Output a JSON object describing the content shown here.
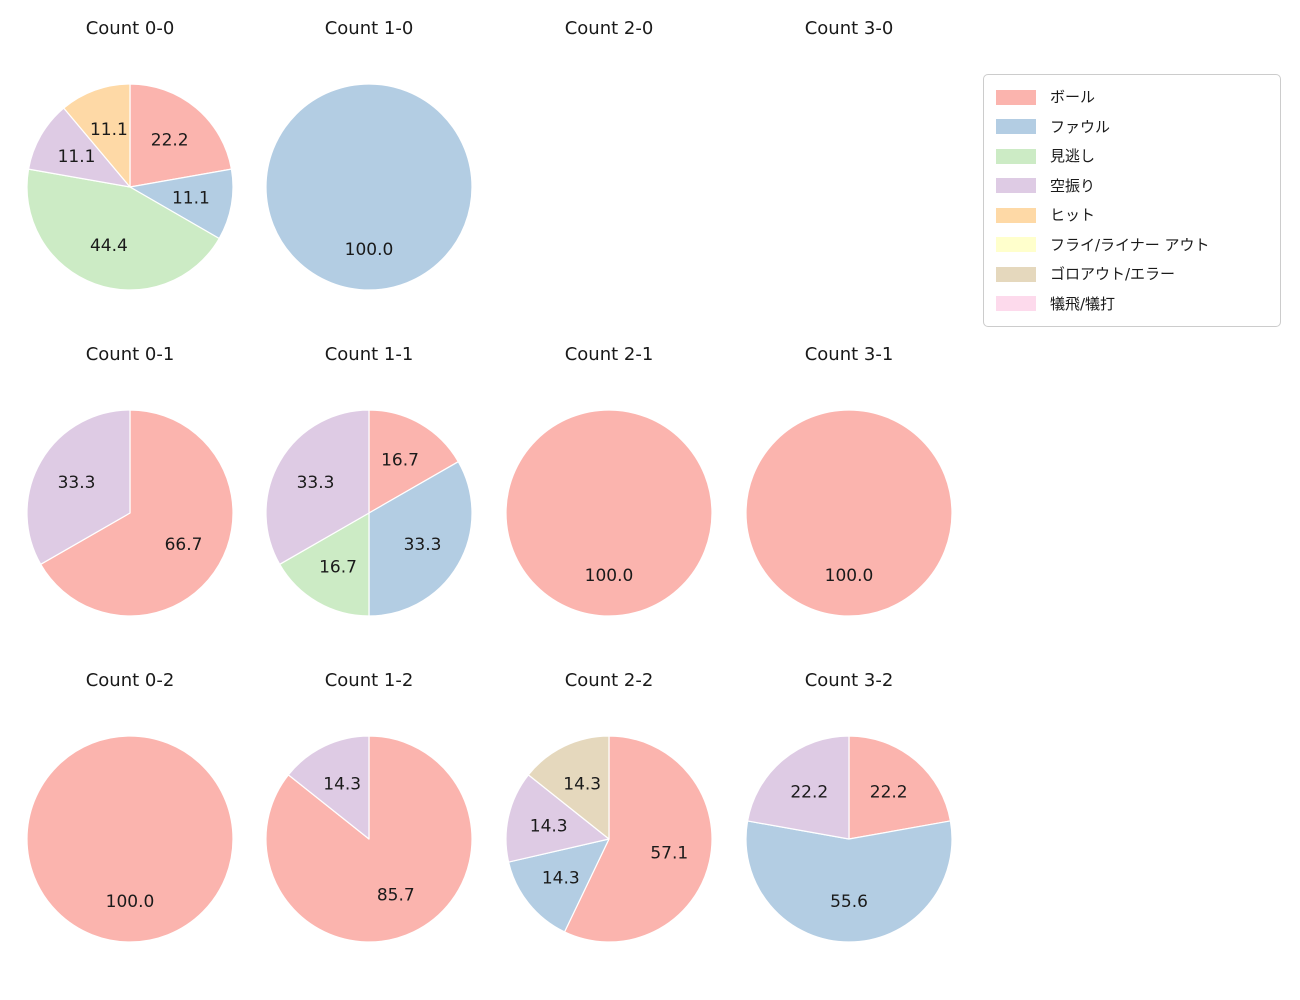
{
  "figure": {
    "background_color": "#ffffff",
    "text_color": "#1a1a1a"
  },
  "legend": {
    "position": "upper right",
    "items": [
      {
        "label": "ボール",
        "color": "#fbb4ae"
      },
      {
        "label": "ファウル",
        "color": "#b3cde3"
      },
      {
        "label": "見逃し",
        "color": "#ccebc5"
      },
      {
        "label": "空振り",
        "color": "#decbe4"
      },
      {
        "label": "ヒット",
        "color": "#fed9a6"
      },
      {
        "label": "フライ/ライナー アウト",
        "color": "#ffffcc"
      },
      {
        "label": "ゴロアウト/エラー",
        "color": "#e5d8bd"
      },
      {
        "label": "犠飛/犠打",
        "color": "#fddaec"
      }
    ]
  },
  "chart_data": [
    {
      "type": "pie",
      "title": "Count 0-0",
      "start_angle": 90,
      "direction": "clockwise",
      "pct_distance": 0.6,
      "labels": [
        "ボール",
        "ファウル",
        "見逃し",
        "空振り",
        "ヒット"
      ],
      "values": [
        22.2,
        11.1,
        44.4,
        11.1,
        11.1
      ]
    },
    {
      "type": "pie",
      "title": "Count 1-0",
      "start_angle": 90,
      "direction": "clockwise",
      "pct_distance": 0.6,
      "labels": [
        "ファウル"
      ],
      "values": [
        100.0
      ]
    },
    {
      "type": "pie",
      "title": "Count 2-0",
      "start_angle": 90,
      "direction": "clockwise",
      "pct_distance": 0.6,
      "labels": [],
      "values": []
    },
    {
      "type": "pie",
      "title": "Count 3-0",
      "start_angle": 90,
      "direction": "clockwise",
      "pct_distance": 0.6,
      "labels": [],
      "values": []
    },
    {
      "type": "pie",
      "title": "Count 0-1",
      "start_angle": 90,
      "direction": "clockwise",
      "pct_distance": 0.6,
      "labels": [
        "ボール",
        "空振り"
      ],
      "values": [
        66.7,
        33.3
      ]
    },
    {
      "type": "pie",
      "title": "Count 1-1",
      "start_angle": 90,
      "direction": "clockwise",
      "pct_distance": 0.6,
      "labels": [
        "ボール",
        "ファウル",
        "見逃し",
        "空振り"
      ],
      "values": [
        16.7,
        33.3,
        16.7,
        33.3
      ]
    },
    {
      "type": "pie",
      "title": "Count 2-1",
      "start_angle": 90,
      "direction": "clockwise",
      "pct_distance": 0.6,
      "labels": [
        "ボール"
      ],
      "values": [
        100.0
      ]
    },
    {
      "type": "pie",
      "title": "Count 3-1",
      "start_angle": 90,
      "direction": "clockwise",
      "pct_distance": 0.6,
      "labels": [
        "ボール"
      ],
      "values": [
        100.0
      ]
    },
    {
      "type": "pie",
      "title": "Count 0-2",
      "start_angle": 90,
      "direction": "clockwise",
      "pct_distance": 0.6,
      "labels": [
        "ボール"
      ],
      "values": [
        100.0
      ]
    },
    {
      "type": "pie",
      "title": "Count 1-2",
      "start_angle": 90,
      "direction": "clockwise",
      "pct_distance": 0.6,
      "labels": [
        "ボール",
        "空振り"
      ],
      "values": [
        85.7,
        14.3
      ]
    },
    {
      "type": "pie",
      "title": "Count 2-2",
      "start_angle": 90,
      "direction": "clockwise",
      "pct_distance": 0.6,
      "labels": [
        "ボール",
        "ファウル",
        "空振り",
        "ゴロアウト/エラー"
      ],
      "values": [
        57.1,
        14.3,
        14.3,
        14.3
      ]
    },
    {
      "type": "pie",
      "title": "Count 3-2",
      "start_angle": 90,
      "direction": "clockwise",
      "pct_distance": 0.6,
      "labels": [
        "ボール",
        "ファウル",
        "空振り"
      ],
      "values": [
        22.2,
        55.6,
        22.2
      ]
    }
  ]
}
